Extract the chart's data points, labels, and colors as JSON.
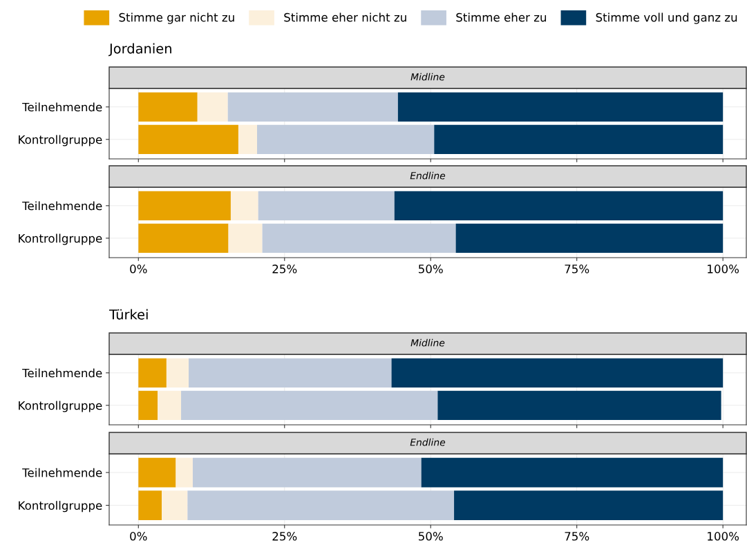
{
  "chart_data": [
    {
      "type": "bar",
      "orientation": "horizontal",
      "stacked": true,
      "title": "Jordanien",
      "subtitle": "Midline",
      "categories": [
        "Teilnehmende",
        "Kontrollgruppe"
      ],
      "legend": "top",
      "grid": true,
      "tick_labels": "y",
      "xlim": [
        -5,
        104
      ],
      "xticks": [
        {
          "value": 0,
          "label": null
        },
        {
          "value": 25,
          "label": null
        },
        {
          "value": 50,
          "label": null
        },
        {
          "value": 75,
          "label": null
        },
        {
          "value": 100,
          "label": null
        }
      ],
      "series": [
        {
          "name": "Stimme gar nicht zu",
          "color": "#e8a300",
          "values": [
            10.1,
            17.1
          ]
        },
        {
          "name": "Stimme eher nicht zu",
          "color": "#fcf0dc",
          "values": [
            5.2,
            3.2
          ]
        },
        {
          "name": "Stimme eher zu",
          "color": "#c0cbdc",
          "values": [
            29.1,
            30.3
          ]
        },
        {
          "name": "Stimme voll und ganz zu",
          "color": "#003a63",
          "values": [
            55.6,
            49.4
          ]
        }
      ]
    },
    {
      "type": "bar",
      "orientation": "horizontal",
      "stacked": true,
      "subtitle": "Endline",
      "categories": [
        "Teilnehmende",
        "Kontrollgruppe"
      ],
      "grid": true,
      "xlim": [
        -5,
        104
      ],
      "xticks": [
        {
          "value": 0,
          "label": "0%"
        },
        {
          "value": 25,
          "label": "25%"
        },
        {
          "value": 50,
          "label": "50%"
        },
        {
          "value": 75,
          "label": "75%"
        },
        {
          "value": 100,
          "label": "100%"
        }
      ],
      "series": [
        {
          "color": "#e8a300",
          "values": [
            15.8,
            15.4
          ]
        },
        {
          "color": "#fcf0dc",
          "values": [
            4.7,
            5.8
          ]
        },
        {
          "color": "#c0cbdc",
          "values": [
            23.3,
            33.1
          ]
        },
        {
          "color": "#003a63",
          "values": [
            56.2,
            45.7
          ]
        }
      ]
    },
    {
      "type": "bar",
      "orientation": "horizontal",
      "stacked": true,
      "title": "Türkei",
      "subtitle": "Midline",
      "categories": [
        "Teilnehmende",
        "Kontrollgruppe"
      ],
      "grid": true,
      "tick_labels": "y",
      "xlim": [
        -5,
        104
      ],
      "xticks": [
        {
          "value": 0,
          "label": null
        },
        {
          "value": 25,
          "label": null
        },
        {
          "value": 50,
          "label": null
        },
        {
          "value": 75,
          "label": null
        },
        {
          "value": 100,
          "label": null
        }
      ],
      "series": [
        {
          "color": "#e8a300",
          "values": [
            4.8,
            3.3
          ]
        },
        {
          "color": "#fcf0dc",
          "values": [
            3.8,
            4.0
          ]
        },
        {
          "color": "#c0cbdc",
          "values": [
            34.7,
            43.9
          ]
        },
        {
          "color": "#003a63",
          "values": [
            56.7,
            48.5
          ]
        }
      ]
    },
    {
      "type": "bar",
      "orientation": "horizontal",
      "stacked": true,
      "subtitle": "Endline",
      "categories": [
        "Teilnehmende",
        "Kontrollgruppe"
      ],
      "grid": true,
      "xlim": [
        -5,
        104
      ],
      "xticks": [
        {
          "value": 0,
          "label": "0%"
        },
        {
          "value": 25,
          "label": "25%"
        },
        {
          "value": 50,
          "label": "50%"
        },
        {
          "value": 75,
          "label": "75%"
        },
        {
          "value": 100,
          "label": "100%"
        }
      ],
      "series": [
        {
          "color": "#e8a300",
          "values": [
            6.4,
            4.0
          ]
        },
        {
          "color": "#fcf0dc",
          "values": [
            2.9,
            4.4
          ]
        },
        {
          "color": "#c0cbdc",
          "values": [
            39.1,
            45.6
          ]
        },
        {
          "color": "#003a63",
          "values": [
            51.6,
            46.0
          ]
        }
      ]
    }
  ]
}
